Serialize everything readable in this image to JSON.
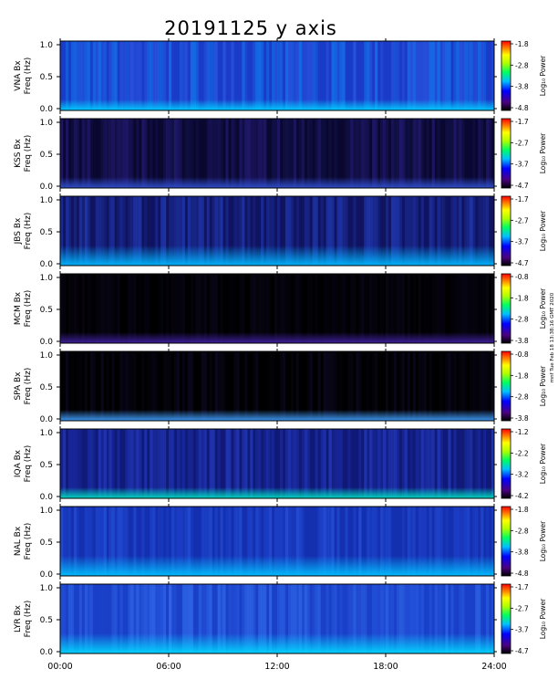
{
  "chart_data": {
    "type": "heatmap",
    "title": "20191125 y axis",
    "x_tick_labels": [
      "00:00",
      "06:00",
      "12:00",
      "18:00",
      "24:00"
    ],
    "x_range_hours": [
      0,
      24
    ],
    "y_tick_labels": [
      "0.0",
      "0.5",
      "1.0"
    ],
    "ylim": [
      0,
      1.0
    ],
    "y_label_suffix": "Freq (Hz)",
    "colorbar_label": "Log₁₀ Power",
    "colormap": "rainbow",
    "side_note": "mnf Tue Feb 18 13:38:16 GMT 2020",
    "panels": [
      {
        "station": "VNA Bx",
        "cbar": [
          "-1.8",
          "-2.8",
          "-3.8",
          "-4.8"
        ],
        "style": "vna"
      },
      {
        "station": "KSS Bx",
        "cbar": [
          "-1.7",
          "-2.7",
          "-3.7",
          "-4.7"
        ],
        "style": "kss"
      },
      {
        "station": "JBS Bx",
        "cbar": [
          "-1.7",
          "-2.7",
          "-3.7",
          "-4.7"
        ],
        "style": "jbs"
      },
      {
        "station": "MCM Bx",
        "cbar": [
          "-0.8",
          "-1.8",
          "-2.8",
          "-3.8"
        ],
        "style": "mcm"
      },
      {
        "station": "SPA Bx",
        "cbar": [
          "-0.8",
          "-1.8",
          "-2.8",
          "-3.8"
        ],
        "style": "spa"
      },
      {
        "station": "IQA Bx",
        "cbar": [
          "-1.2",
          "-2.2",
          "-3.2",
          "-4.2"
        ],
        "style": "iqa"
      },
      {
        "station": "NAL Bx",
        "cbar": [
          "-1.8",
          "-2.8",
          "-3.8",
          "-4.8"
        ],
        "style": "nal"
      },
      {
        "station": "LYR Bx",
        "cbar": [
          "-1.7",
          "-2.7",
          "-3.7",
          "-4.7"
        ],
        "style": "lyr"
      }
    ]
  }
}
